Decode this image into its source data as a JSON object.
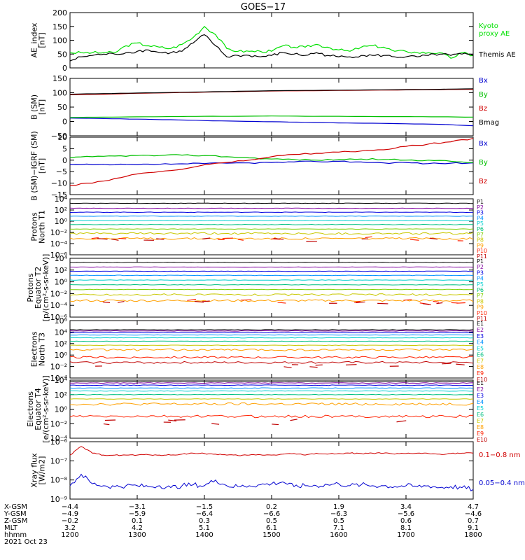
{
  "title": "GOES−17",
  "chart_data": [
    {
      "type": "line",
      "ylabel": [
        "AE_index",
        "[nT]"
      ],
      "ylim": [
        0,
        200
      ],
      "yticks": [
        "0",
        "50",
        "100",
        "150",
        "200"
      ],
      "x": [
        1200,
        1210,
        1220,
        1230,
        1240,
        1250,
        1300,
        1310,
        1320,
        1330,
        1340,
        1350,
        1400,
        1410,
        1420,
        1430,
        1440,
        1450,
        1500,
        1510,
        1520,
        1530,
        1540,
        1550,
        1600,
        1610,
        1620,
        1630,
        1640,
        1650,
        1700,
        1710,
        1720,
        1730,
        1740,
        1750,
        1800
      ],
      "series": [
        {
          "name": "Kyoto proxy AE",
          "color": "#00e000",
          "values": [
            55,
            55,
            55,
            55,
            55,
            80,
            90,
            80,
            75,
            70,
            85,
            110,
            150,
            120,
            70,
            60,
            60,
            60,
            60,
            80,
            75,
            75,
            85,
            75,
            65,
            60,
            75,
            80,
            75,
            60,
            60,
            55,
            55,
            55,
            35,
            55,
            45
          ]
        },
        {
          "name": "Themis AE",
          "color": "#000000",
          "values": [
            25,
            40,
            45,
            50,
            50,
            55,
            60,
            65,
            55,
            55,
            60,
            90,
            120,
            80,
            40,
            45,
            45,
            40,
            45,
            55,
            50,
            45,
            55,
            45,
            40,
            40,
            45,
            45,
            45,
            40,
            40,
            40,
            45,
            50,
            45,
            50,
            45
          ]
        }
      ]
    },
    {
      "type": "line",
      "ylabel": [
        "B (SM)",
        "[nT]"
      ],
      "ylim": [
        -50,
        150
      ],
      "yticks": [
        "−50",
        "0",
        "50",
        "100",
        "150"
      ],
      "x": [
        1200,
        1230,
        1300,
        1330,
        1400,
        1430,
        1500,
        1530,
        1600,
        1630,
        1700,
        1730,
        1800
      ],
      "series": [
        {
          "name": "Bx",
          "color": "#0000d0",
          "values": [
            12,
            10,
            8,
            6,
            3,
            1,
            -1,
            -3,
            -5,
            -6,
            -8,
            -10,
            -15
          ]
        },
        {
          "name": "By",
          "color": "#00c000",
          "values": [
            14,
            15,
            16,
            17,
            18,
            18,
            19,
            18,
            18,
            17,
            17,
            16,
            15
          ]
        },
        {
          "name": "Bz",
          "color": "#d00000",
          "values": [
            93,
            95,
            98,
            100,
            102,
            104,
            106,
            107,
            108,
            109,
            110,
            111,
            112
          ]
        },
        {
          "name": "Bmag",
          "color": "#000000",
          "values": [
            95,
            97,
            99,
            101,
            103,
            105,
            107,
            108,
            109,
            110,
            111,
            112,
            114
          ]
        }
      ]
    },
    {
      "type": "line",
      "ylabel": [
        "B (SM)−IGRF (SM)",
        "[nT]"
      ],
      "ylim": [
        -15,
        10
      ],
      "yticks": [
        "−15",
        "−10",
        "−5",
        "0",
        "5",
        "10"
      ],
      "x": [
        1200,
        1220,
        1240,
        1300,
        1320,
        1340,
        1400,
        1420,
        1440,
        1500,
        1520,
        1540,
        1600,
        1620,
        1640,
        1700,
        1720,
        1740,
        1800
      ],
      "series": [
        {
          "name": "Bx",
          "color": "#0000d0",
          "values": [
            -2,
            -2,
            -2,
            -2,
            -1.8,
            -1.6,
            -1.5,
            -1.3,
            -1.2,
            -1.0,
            -0.8,
            -0.6,
            -0.5,
            -0.8,
            -1.2,
            -1.0,
            -1.5,
            -1.3,
            -1.2
          ]
        },
        {
          "name": "By",
          "color": "#00c000",
          "values": [
            1,
            1.5,
            1.8,
            2,
            2,
            2.2,
            2,
            1.5,
            1,
            0.5,
            0.3,
            0,
            0.3,
            0.5,
            0.3,
            0,
            0,
            -0.5,
            -1
          ]
        },
        {
          "name": "Bz",
          "color": "#d00000",
          "values": [
            -11,
            -10,
            -8,
            -6,
            -5,
            -4,
            -2,
            -1,
            0,
            1.5,
            2.5,
            3,
            3.5,
            4,
            4.5,
            6,
            7,
            8,
            9.5
          ]
        }
      ]
    },
    {
      "type": "line",
      "log": true,
      "ylabel": [
        "Protons",
        "North T1"
      ],
      "ylim": [
        -6,
        4
      ],
      "yticks": [
        "10⁻⁶",
        "10⁻⁴",
        "10⁻²",
        "10⁰",
        "10²",
        "10⁴"
      ],
      "legend": [
        "P1",
        "P2",
        "P3",
        "P4",
        "P5",
        "P6",
        "P7",
        "P8",
        "P9",
        "P10",
        "P11"
      ],
      "colors": [
        "#000000",
        "#8000a0",
        "#0000e0",
        "#0090ff",
        "#00d0d0",
        "#00c080",
        "#80d000",
        "#c8c800",
        "#ffa000",
        "#ff2000",
        "#c00000"
      ],
      "series_log10": [
        3.2,
        2.3,
        1.6,
        0.9,
        0.1,
        -0.6,
        -1.4,
        -2.2,
        -3.1
      ],
      "sparse_series_log10": [
        -3.2,
        -3.3
      ]
    },
    {
      "type": "line",
      "log": true,
      "ylabel": [
        "Protons",
        "Equator T2",
        "[p/(cm²-s-sr-keV)]"
      ],
      "ylim": [
        -6,
        4
      ],
      "yticks": [
        "10⁻⁶",
        "10⁻⁴",
        "10⁻²",
        "10⁰",
        "10²",
        "10⁴"
      ],
      "legend": [
        "P1",
        "P2",
        "P3",
        "P4",
        "P5",
        "P6",
        "P7",
        "P8",
        "P9",
        "P10",
        "P11"
      ],
      "colors": [
        "#000000",
        "#8000a0",
        "#0000e0",
        "#0090ff",
        "#00d0d0",
        "#00c080",
        "#80d000",
        "#c8c800",
        "#ffa000",
        "#ff2000",
        "#c00000"
      ],
      "series_log10": [
        3.3,
        2.5,
        1.8,
        1.1,
        0.3,
        -0.5,
        -1.3,
        -2.2,
        -3.2
      ],
      "sparse_series_log10": [
        -3.4,
        -3.5
      ]
    },
    {
      "type": "line",
      "log": true,
      "ylabel": [
        "Electrons",
        "North T3"
      ],
      "ylim": [
        -4,
        6
      ],
      "yticks": [
        "10⁻⁴",
        "10⁻²",
        "10⁰",
        "10²",
        "10⁴",
        "10⁶"
      ],
      "legend": [
        "E1",
        "E2",
        "E3",
        "E4",
        "E5",
        "E6",
        "E7",
        "E8",
        "E9",
        "E10"
      ],
      "colors": [
        "#000000",
        "#8000a0",
        "#0000e0",
        "#0090ff",
        "#00d0d0",
        "#00c080",
        "#c8c800",
        "#ffa000",
        "#ff2000",
        "#c00000"
      ],
      "series_log10": [
        4.4,
        4.2,
        3.9,
        3.5,
        3.0,
        2.4,
        1.7,
        0.9,
        -0.4,
        -1.3
      ],
      "sparse_series_log10": [
        -1.8
      ]
    },
    {
      "type": "line",
      "log": true,
      "ylabel": [
        "Electrons",
        "Equator T4",
        "[e/(cm²-s-sr-keV)]"
      ],
      "ylim": [
        -4,
        4
      ],
      "yticks": [
        "10⁻⁴",
        "10⁻²",
        "10⁰",
        "10²",
        "10⁴"
      ],
      "legend": [
        "E1",
        "E2",
        "E3",
        "E4",
        "E5",
        "E6",
        "E7",
        "E8",
        "E9",
        "E10"
      ],
      "colors": [
        "#000000",
        "#8000a0",
        "#0000e0",
        "#0090ff",
        "#00d0d0",
        "#00c080",
        "#c8c800",
        "#ffa000",
        "#ff2000",
        "#c00000"
      ],
      "series_log10": [
        3.8,
        3.6,
        3.3,
        2.9,
        2.5,
        2.0,
        1.4,
        0.7,
        -1.0
      ],
      "sparse_series_log10": [
        -1.8
      ]
    },
    {
      "type": "line",
      "log": true,
      "ylabel": [
        "Xray flux",
        "[W/m2]"
      ],
      "ylim": [
        -9,
        -6
      ],
      "yticks": [
        "10⁻⁹",
        "10⁻⁸",
        "10⁻⁷",
        "10⁻⁶"
      ],
      "x": [
        1200,
        1210,
        1220,
        1230,
        1240,
        1250,
        1300,
        1310,
        1320,
        1330,
        1340,
        1350,
        1400,
        1410,
        1420,
        1430,
        1440,
        1450,
        1500,
        1510,
        1520,
        1530,
        1540,
        1550,
        1600,
        1610,
        1620,
        1630,
        1640,
        1650,
        1700,
        1710,
        1720,
        1730,
        1740,
        1750,
        1800
      ],
      "series": [
        {
          "name": "0.1−0.8 nm",
          "color": "#d00000",
          "values_log10": [
            -6.7,
            -6.25,
            -6.6,
            -6.7,
            -6.7,
            -6.7,
            -6.7,
            -6.68,
            -6.7,
            -6.7,
            -6.65,
            -6.6,
            -6.62,
            -6.65,
            -6.7,
            -6.72,
            -6.7,
            -6.68,
            -6.7,
            -6.65,
            -6.62,
            -6.7,
            -6.6,
            -6.65,
            -6.62,
            -6.6,
            -6.62,
            -6.6,
            -6.6,
            -6.65,
            -6.62,
            -6.6,
            -6.62,
            -6.65,
            -6.62,
            -6.6,
            -6.6
          ]
        },
        {
          "name": "0.05−0.4 nm",
          "color": "#0000d0",
          "values_log10": [
            -8.3,
            -7.7,
            -8.2,
            -8.3,
            -8.35,
            -8.3,
            -8.3,
            -8.35,
            -8.3,
            -8.4,
            -8.3,
            -8.25,
            -8.3,
            -8.0,
            -8.3,
            -8.35,
            -8.3,
            -8.25,
            -8.2,
            -8.1,
            -8.35,
            -8.3,
            -8.3,
            -8.25,
            -8.2,
            -8.3,
            -8.25,
            -8.3,
            -8.3,
            -8.35,
            -8.3,
            -8.35,
            -8.3,
            -8.4,
            -8.35,
            -8.4,
            -8.5
          ]
        }
      ]
    }
  ],
  "panel_legends": [
    {
      "items": [
        {
          "text": "Kyoto",
          "color": "#00e000"
        },
        {
          "text": "proxy AE",
          "color": "#00e000"
        },
        {
          "text": "Themis AE",
          "color": "#000000"
        }
      ]
    },
    {
      "items": [
        {
          "text": "Bx",
          "color": "#0000d0"
        },
        {
          "text": "By",
          "color": "#00c000"
        },
        {
          "text": "Bz",
          "color": "#d00000"
        },
        {
          "text": "Bmag",
          "color": "#000000"
        }
      ]
    },
    {
      "items": [
        {
          "text": "Bx",
          "color": "#0000d0"
        },
        {
          "text": "By",
          "color": "#00c000"
        },
        {
          "text": "Bz",
          "color": "#d00000"
        }
      ]
    },
    {
      "items": []
    },
    {
      "items": []
    },
    {
      "items": []
    },
    {
      "items": []
    },
    {
      "items": [
        {
          "text": "0.1−0.8 nm",
          "color": "#d00000"
        },
        {
          "text": "0.05−0.4 nm",
          "color": "#0000d0"
        }
      ]
    }
  ],
  "x_axis": {
    "row_labels": [
      "X-GSM",
      "Y-GSM",
      "Z-GSM",
      "MLT",
      "hhmm",
      "2021 Oct 23"
    ],
    "columns": [
      [
        "−4.4",
        "−4.9",
        "−0.2",
        "3.2",
        "1200"
      ],
      [
        "−3.1",
        "−5.9",
        "0.1",
        "4.2",
        "1300"
      ],
      [
        "−1.5",
        "−6.4",
        "0.3",
        "5.1",
        "1400"
      ],
      [
        "0.2",
        "−6.6",
        "0.5",
        "6.1",
        "1500"
      ],
      [
        "1.9",
        "−6.3",
        "0.5",
        "7.1",
        "1600"
      ],
      [
        "3.4",
        "−5.6",
        "0.6",
        "8.1",
        "1700"
      ],
      [
        "4.7",
        "−4.6",
        "0.7",
        "9.1",
        "1800"
      ]
    ]
  }
}
